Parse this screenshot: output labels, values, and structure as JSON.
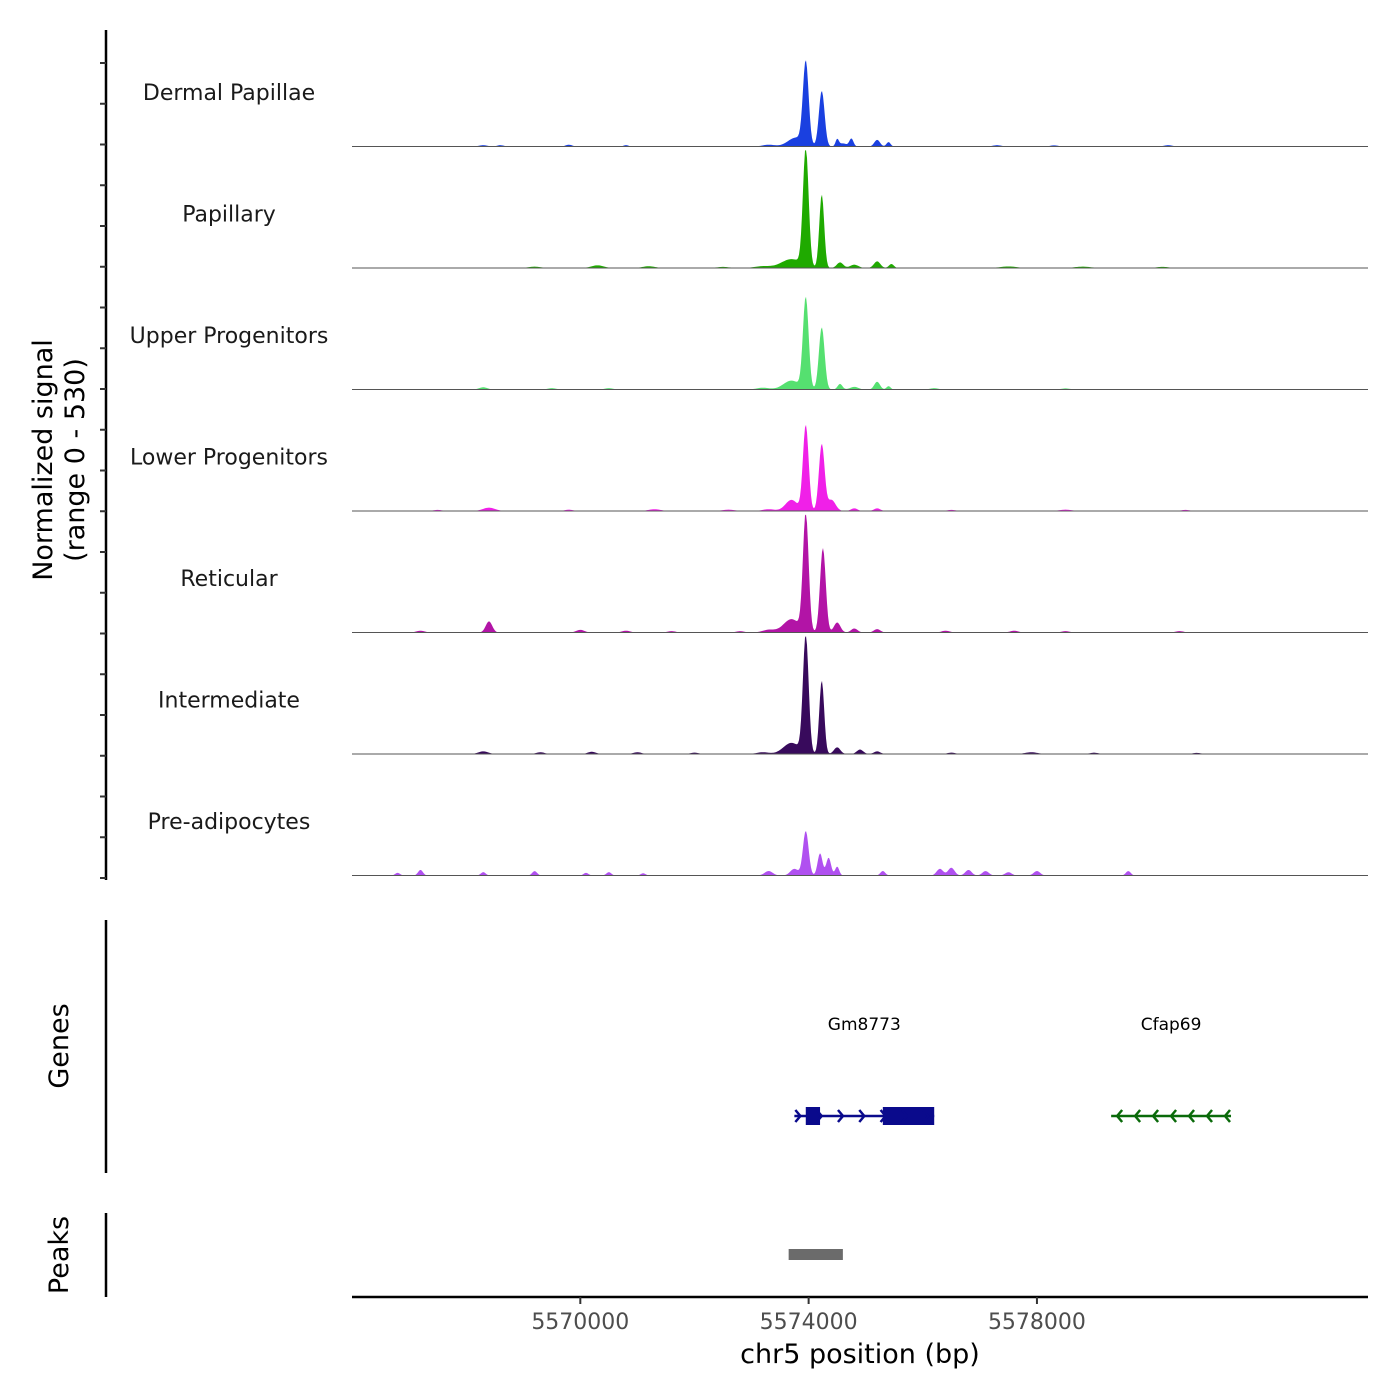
{
  "chart_data": {
    "type": "area",
    "title": "",
    "chromosome": "chr5",
    "xlabel": "chr5 position (bp)",
    "ylabel": "Normalized signal\n(range 0 - 530)",
    "y_range": [
      0,
      530
    ],
    "xlim": [
      5566000,
      5583800
    ],
    "x_ticks": [
      5570000,
      5574000,
      5578000
    ],
    "x_tick_labels": [
      "5570000",
      "5574000",
      "5578000"
    ],
    "tracks": [
      {
        "name": "Dermal Papillae",
        "color": "#1a40e0",
        "peaks": [
          [
            5573950,
            370,
            70
          ],
          [
            5574230,
            250,
            70
          ],
          [
            5573780,
            40,
            200
          ],
          [
            5574500,
            30,
            40
          ],
          [
            5574750,
            35,
            50
          ],
          [
            5575200,
            30,
            70
          ],
          [
            5575400,
            20,
            50
          ],
          [
            5574600,
            14,
            100
          ],
          [
            5568300,
            6,
            100
          ],
          [
            5568600,
            6,
            80
          ],
          [
            5569800,
            8,
            80
          ],
          [
            5570800,
            6,
            60
          ],
          [
            5573300,
            8,
            150
          ],
          [
            5577300,
            6,
            100
          ],
          [
            5578300,
            5,
            100
          ],
          [
            5580300,
            6,
            100
          ]
        ]
      },
      {
        "name": "Papillary",
        "color": "#1faa00",
        "peaks": [
          [
            5573950,
            530,
            70
          ],
          [
            5574230,
            330,
            60
          ],
          [
            5573700,
            40,
            250
          ],
          [
            5574550,
            25,
            80
          ],
          [
            5575200,
            30,
            80
          ],
          [
            5575450,
            18,
            60
          ],
          [
            5574800,
            15,
            100
          ],
          [
            5569200,
            6,
            150
          ],
          [
            5570300,
            12,
            150
          ],
          [
            5571200,
            8,
            150
          ],
          [
            5572500,
            5,
            150
          ],
          [
            5573200,
            8,
            200
          ],
          [
            5577500,
            7,
            200
          ],
          [
            5578800,
            6,
            200
          ],
          [
            5580200,
            5,
            150
          ]
        ]
      },
      {
        "name": "Upper Progenitors",
        "color": "#55e070",
        "peaks": [
          [
            5573950,
            410,
            70
          ],
          [
            5574230,
            280,
            70
          ],
          [
            5573700,
            40,
            200
          ],
          [
            5574550,
            25,
            60
          ],
          [
            5575200,
            35,
            70
          ],
          [
            5575400,
            15,
            50
          ],
          [
            5574800,
            12,
            100
          ],
          [
            5568300,
            10,
            100
          ],
          [
            5569500,
            6,
            100
          ],
          [
            5570500,
            6,
            100
          ],
          [
            5573200,
            8,
            150
          ],
          [
            5576200,
            6,
            100
          ],
          [
            5578500,
            5,
            100
          ]
        ]
      },
      {
        "name": "Lower Progenitors",
        "color": "#f020e8",
        "peaks": [
          [
            5573950,
            385,
            70
          ],
          [
            5574230,
            300,
            70
          ],
          [
            5574400,
            50,
            100
          ],
          [
            5573700,
            50,
            150
          ],
          [
            5574800,
            12,
            80
          ],
          [
            5575200,
            12,
            80
          ],
          [
            5568400,
            15,
            150
          ],
          [
            5567500,
            5,
            100
          ],
          [
            5569800,
            6,
            100
          ],
          [
            5571300,
            8,
            150
          ],
          [
            5572600,
            6,
            150
          ],
          [
            5573300,
            8,
            150
          ],
          [
            5576500,
            5,
            100
          ],
          [
            5578500,
            6,
            150
          ],
          [
            5580600,
            5,
            100
          ]
        ]
      },
      {
        "name": "Reticular",
        "color": "#b214a6",
        "peaks": [
          [
            5573950,
            530,
            70
          ],
          [
            5574250,
            380,
            70
          ],
          [
            5573700,
            60,
            200
          ],
          [
            5574500,
            45,
            80
          ],
          [
            5574800,
            18,
            80
          ],
          [
            5575200,
            15,
            80
          ],
          [
            5568400,
            50,
            80
          ],
          [
            5567200,
            8,
            100
          ],
          [
            5570000,
            12,
            100
          ],
          [
            5570800,
            8,
            100
          ],
          [
            5571600,
            6,
            100
          ],
          [
            5572800,
            6,
            100
          ],
          [
            5573300,
            12,
            150
          ],
          [
            5576400,
            8,
            100
          ],
          [
            5577600,
            8,
            100
          ],
          [
            5578500,
            6,
            100
          ],
          [
            5580500,
            6,
            100
          ]
        ]
      },
      {
        "name": "Intermediate",
        "color": "#380a5c",
        "peaks": [
          [
            5573950,
            530,
            70
          ],
          [
            5574230,
            330,
            60
          ],
          [
            5573700,
            50,
            200
          ],
          [
            5574500,
            30,
            80
          ],
          [
            5574900,
            20,
            80
          ],
          [
            5575200,
            12,
            80
          ],
          [
            5568300,
            12,
            120
          ],
          [
            5569300,
            8,
            100
          ],
          [
            5570200,
            10,
            100
          ],
          [
            5571000,
            8,
            100
          ],
          [
            5572000,
            6,
            100
          ],
          [
            5573200,
            8,
            150
          ],
          [
            5576500,
            6,
            100
          ],
          [
            5577900,
            8,
            150
          ],
          [
            5579000,
            6,
            100
          ],
          [
            5580800,
            5,
            100
          ]
        ]
      },
      {
        "name": "Pre-adipocytes",
        "color": "#b050f0",
        "peaks": [
          [
            5573950,
            200,
            70
          ],
          [
            5574200,
            100,
            60
          ],
          [
            5574350,
            80,
            60
          ],
          [
            5573750,
            30,
            100
          ],
          [
            5574500,
            40,
            50
          ],
          [
            5566800,
            12,
            60
          ],
          [
            5567200,
            25,
            60
          ],
          [
            5568300,
            15,
            60
          ],
          [
            5569200,
            20,
            60
          ],
          [
            5570100,
            12,
            60
          ],
          [
            5570500,
            15,
            60
          ],
          [
            5571100,
            10,
            60
          ],
          [
            5573300,
            20,
            100
          ],
          [
            5575300,
            20,
            60
          ],
          [
            5576300,
            30,
            80
          ],
          [
            5576500,
            35,
            80
          ],
          [
            5576800,
            25,
            80
          ],
          [
            5577100,
            20,
            80
          ],
          [
            5577500,
            15,
            80
          ],
          [
            5578000,
            20,
            80
          ],
          [
            5579600,
            20,
            60
          ]
        ]
      }
    ],
    "genes": [
      {
        "name": "Gm8773",
        "strand": "+",
        "start": 5573750,
        "end": 5576200,
        "color": "#0a0a8c",
        "exons": [
          [
            5573950,
            5574200
          ],
          [
            5575300,
            5576200
          ]
        ]
      },
      {
        "name": "Cfap69",
        "strand": "-",
        "start": 5579300,
        "end": 5581400,
        "color": "#0a6a0a",
        "exons": []
      }
    ],
    "peaks_track": {
      "label": "Peaks",
      "color": "#6b6b6b",
      "regions": [
        [
          5573650,
          5574600
        ]
      ]
    },
    "genes_track_label": "Genes"
  }
}
